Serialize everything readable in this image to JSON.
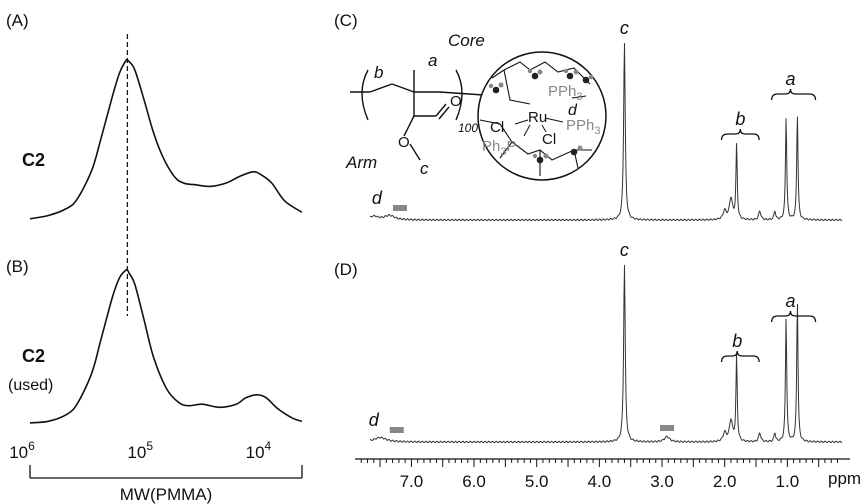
{
  "panels": {
    "A": {
      "label": "(A)",
      "sample": "C2"
    },
    "B": {
      "label": "(B)",
      "sample": "C2",
      "sample_note": "(used)"
    },
    "C": {
      "label": "(C)"
    },
    "D": {
      "label": "(D)"
    }
  },
  "structure": {
    "core_label": "Core",
    "arm_label": "Arm",
    "dp": "100",
    "ru": "Ru",
    "cl_top": "Cl",
    "cl_bottom": "Cl",
    "pph3_top": "PPh",
    "pph3_right": "PPh",
    "ph3p": "Ph",
    "ph3p_tail": "P",
    "sub3": "3",
    "carbonyl_o": "O",
    "ester_o": "O",
    "letters": {
      "a": "a",
      "b": "b",
      "c": "c",
      "d": "d"
    }
  },
  "chart_data": [
    {
      "type": "line",
      "panel": "A",
      "xlabel": "MW(PMMA)",
      "x_scale": "log",
      "x_reversed": true,
      "xlim": [
        1000000,
        5000
      ],
      "ticks": [
        {
          "value": 1000000,
          "base": "10",
          "exp": "6"
        },
        {
          "value": 100000,
          "base": "10",
          "exp": "5"
        },
        {
          "value": 10000,
          "base": "10",
          "exp": "4"
        }
      ],
      "peak_mw": 150000,
      "curve": {
        "mw": [
          1000000,
          700000,
          500000,
          400000,
          300000,
          250000,
          200000,
          175000,
          155000,
          150000,
          145000,
          130000,
          110000,
          90000,
          75000,
          60000,
          50000,
          40000,
          30000,
          22000,
          17000,
          13000,
          11000,
          9000,
          7000,
          5000
        ],
        "height": [
          0.02,
          0.04,
          0.08,
          0.14,
          0.32,
          0.52,
          0.78,
          0.92,
          0.995,
          1.0,
          0.99,
          0.94,
          0.77,
          0.55,
          0.4,
          0.28,
          0.24,
          0.23,
          0.22,
          0.24,
          0.28,
          0.31,
          0.29,
          0.24,
          0.13,
          0.06
        ]
      }
    },
    {
      "type": "line",
      "panel": "B",
      "x_scale": "log",
      "x_reversed": true,
      "xlim": [
        1000000,
        5000
      ],
      "peak_mw": 150000,
      "curve": {
        "mw": [
          1000000,
          700000,
          500000,
          400000,
          300000,
          250000,
          200000,
          175000,
          155000,
          150000,
          145000,
          130000,
          110000,
          90000,
          70000,
          55000,
          45000,
          35000,
          25000,
          18000,
          15000,
          12000,
          10000,
          8000,
          6000,
          5000
        ],
        "height": [
          0.02,
          0.03,
          0.07,
          0.14,
          0.34,
          0.56,
          0.83,
          0.95,
          0.998,
          1.0,
          0.98,
          0.91,
          0.7,
          0.44,
          0.24,
          0.15,
          0.13,
          0.14,
          0.12,
          0.14,
          0.18,
          0.2,
          0.18,
          0.11,
          0.05,
          0.03
        ]
      }
    },
    {
      "type": "line",
      "panel": "C",
      "xlabel": "ppm",
      "x_reversed": true,
      "xlim": [
        7.9,
        0.0
      ],
      "tick_labels": [
        {
          "value": 7.0,
          "text": "7.0"
        },
        {
          "value": 6.0,
          "text": "6.0"
        },
        {
          "value": 5.0,
          "text": "5.0"
        },
        {
          "value": 4.0,
          "text": "4.0"
        },
        {
          "value": 3.0,
          "text": "3.0"
        },
        {
          "value": 2.0,
          "text": "2.0"
        },
        {
          "value": 1.0,
          "text": "1.0"
        }
      ],
      "peaks": [
        {
          "ppm": 3.6,
          "height": 1.0,
          "width": 0.015
        },
        {
          "ppm": 1.81,
          "height": 0.42,
          "width": 0.012
        },
        {
          "ppm": 1.9,
          "height": 0.12,
          "width": 0.03
        },
        {
          "ppm": 2.0,
          "height": 0.05,
          "width": 0.03
        },
        {
          "ppm": 1.44,
          "height": 0.05,
          "width": 0.02
        },
        {
          "ppm": 1.2,
          "height": 0.05,
          "width": 0.015
        },
        {
          "ppm": 1.02,
          "height": 0.58,
          "width": 0.012
        },
        {
          "ppm": 0.84,
          "height": 0.6,
          "width": 0.012
        },
        {
          "ppm": 7.35,
          "height": 0.025,
          "width": 0.1
        },
        {
          "ppm": 7.6,
          "height": 0.02,
          "width": 0.08
        }
      ],
      "annotations": [
        {
          "label": "c",
          "ppm": 3.6
        },
        {
          "label": "b",
          "ppm": 1.75,
          "bracket": [
            2.05,
            1.45
          ]
        },
        {
          "label": "a",
          "ppm": 0.95,
          "bracket": [
            1.25,
            0.55
          ]
        },
        {
          "label": "d",
          "ppm": 7.55
        }
      ]
    },
    {
      "type": "line",
      "panel": "D",
      "x_reversed": true,
      "xlim": [
        7.9,
        0.0
      ],
      "peaks": [
        {
          "ppm": 3.6,
          "height": 1.0,
          "width": 0.015
        },
        {
          "ppm": 1.81,
          "height": 0.48,
          "width": 0.012
        },
        {
          "ppm": 1.9,
          "height": 0.12,
          "width": 0.03
        },
        {
          "ppm": 2.0,
          "height": 0.05,
          "width": 0.03
        },
        {
          "ppm": 1.44,
          "height": 0.05,
          "width": 0.02
        },
        {
          "ppm": 1.2,
          "height": 0.05,
          "width": 0.015
        },
        {
          "ppm": 1.02,
          "height": 0.7,
          "width": 0.012
        },
        {
          "ppm": 0.84,
          "height": 0.8,
          "width": 0.012
        },
        {
          "ppm": 2.92,
          "height": 0.03,
          "width": 0.05
        },
        {
          "ppm": 7.5,
          "height": 0.025,
          "width": 0.12
        }
      ],
      "annotations": [
        {
          "label": "c",
          "ppm": 3.6
        },
        {
          "label": "b",
          "ppm": 1.8,
          "bracket": [
            2.05,
            1.45
          ]
        },
        {
          "label": "a",
          "ppm": 0.95,
          "bracket": [
            1.25,
            0.55
          ]
        },
        {
          "label": "d",
          "ppm": 7.6
        }
      ]
    }
  ]
}
